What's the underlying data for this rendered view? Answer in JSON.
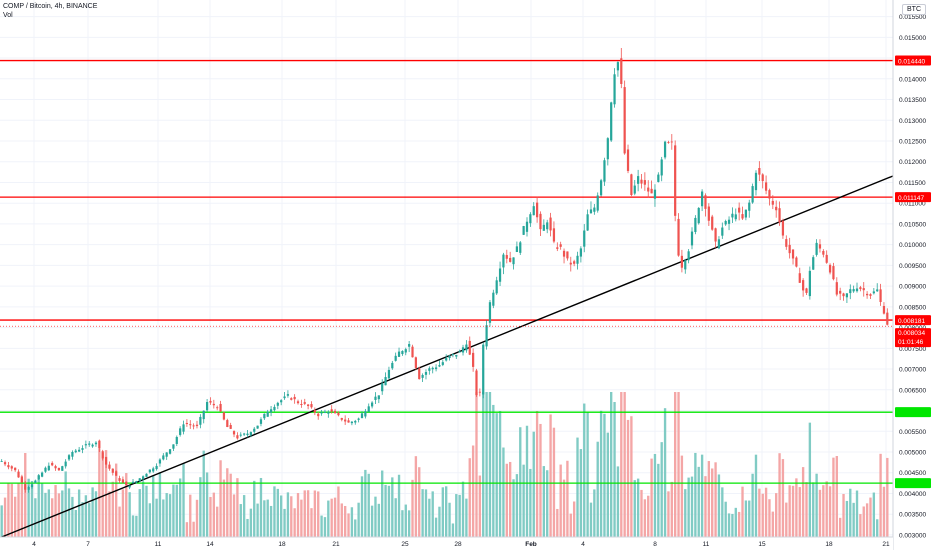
{
  "header": {
    "title": "COMP / Bitcoin, 4h, BINANCE",
    "volume_label": "Vol",
    "currency": "BTC"
  },
  "colors": {
    "up": "#26a69a",
    "down": "#ef5350",
    "up_volume": "#80cbc4",
    "down_volume": "#f4a6a6",
    "resistance": "#ff0000",
    "support": "#00e600",
    "trendline": "#000000",
    "grid": "#f0f3fa",
    "axis_text": "#131722"
  },
  "chart_data": {
    "type": "candlestick",
    "title": "",
    "xlabel": "",
    "ylabel": "",
    "ylim": [
      0.00295,
      0.0159
    ],
    "x_ticks": [
      "4",
      "7",
      "11",
      "14",
      "18",
      "21",
      "25",
      "28",
      "Feb",
      "4",
      "8",
      "11",
      "15",
      "18",
      "21"
    ],
    "y_ticks": [
      "0.003000",
      "0.003500",
      "0.004000",
      "0.004500",
      "0.005000",
      "0.005500",
      "0.006000",
      "0.006500",
      "0.007000",
      "0.007500",
      "0.008000",
      "0.008500",
      "0.009000",
      "0.009500",
      "0.010000",
      "0.010500",
      "0.011000",
      "0.011500",
      "0.012000",
      "0.012500",
      "0.013000",
      "0.013500",
      "0.014000",
      "0.014500",
      "0.015000",
      "0.015500"
    ],
    "price_path": [
      [
        0,
        0.00478
      ],
      [
        4,
        0.00455
      ],
      [
        7,
        0.00412
      ],
      [
        10,
        0.0043
      ],
      [
        14,
        0.0047
      ],
      [
        17,
        0.00455
      ],
      [
        21,
        0.005
      ],
      [
        25,
        0.00515
      ],
      [
        28,
        0.00525
      ],
      [
        31,
        0.0047
      ],
      [
        34,
        0.0044
      ],
      [
        37,
        0.00418
      ],
      [
        40,
        0.0043
      ],
      [
        43,
        0.0045
      ],
      [
        46,
        0.0047
      ],
      [
        49,
        0.005
      ],
      [
        51,
        0.0052
      ],
      [
        54,
        0.0057
      ],
      [
        58,
        0.0056
      ],
      [
        61,
        0.0062
      ],
      [
        64,
        0.0061
      ],
      [
        67,
        0.0056
      ],
      [
        70,
        0.00535
      ],
      [
        73,
        0.00545
      ],
      [
        76,
        0.00565
      ],
      [
        79,
        0.006
      ],
      [
        82,
        0.0062
      ],
      [
        85,
        0.00635
      ],
      [
        88,
        0.0062
      ],
      [
        91,
        0.0061
      ],
      [
        94,
        0.0059
      ],
      [
        97,
        0.006
      ],
      [
        100,
        0.00585
      ],
      [
        103,
        0.0057
      ],
      [
        106,
        0.0058
      ],
      [
        109,
        0.00615
      ],
      [
        112,
        0.0064
      ],
      [
        115,
        0.007
      ],
      [
        118,
        0.0074
      ],
      [
        121,
        0.0076
      ],
      [
        124,
        0.0068
      ],
      [
        127,
        0.007
      ],
      [
        130,
        0.0071
      ],
      [
        133,
        0.0073
      ],
      [
        136,
        0.0074
      ],
      [
        138,
        0.00765
      ],
      [
        140,
        0.007
      ],
      [
        141,
        0.0064
      ],
      [
        142,
        0.0064
      ],
      [
        143,
        0.0076
      ],
      [
        145,
        0.0086
      ],
      [
        147,
        0.0092
      ],
      [
        149,
        0.0098
      ],
      [
        151,
        0.0096
      ],
      [
        153,
        0.0099
      ],
      [
        156,
        0.0106
      ],
      [
        158,
        0.011
      ],
      [
        160,
        0.0103
      ],
      [
        162,
        0.0106
      ],
      [
        164,
        0.01
      ],
      [
        166,
        0.0099
      ],
      [
        168,
        0.0096
      ],
      [
        170,
        0.0095
      ],
      [
        172,
        0.0099
      ],
      [
        174,
        0.0107
      ],
      [
        176,
        0.0109
      ],
      [
        178,
        0.0116
      ],
      [
        180,
        0.0126
      ],
      [
        181,
        0.0135
      ],
      [
        182,
        0.0142
      ],
      [
        183,
        0.0144
      ],
      [
        184,
        0.0138
      ],
      [
        185,
        0.0122
      ],
      [
        187,
        0.0112
      ],
      [
        189,
        0.0116
      ],
      [
        191,
        0.0114
      ],
      [
        193,
        0.0112
      ],
      [
        195,
        0.0116
      ],
      [
        197,
        0.0124
      ],
      [
        199,
        0.0124
      ],
      [
        200,
        0.0107
      ],
      [
        201,
        0.0098
      ],
      [
        202,
        0.0095
      ],
      [
        204,
        0.0099
      ],
      [
        206,
        0.0106
      ],
      [
        208,
        0.0113
      ],
      [
        210,
        0.0106
      ],
      [
        212,
        0.01
      ],
      [
        214,
        0.0104
      ],
      [
        216,
        0.0106
      ],
      [
        218,
        0.0108
      ],
      [
        220,
        0.0106
      ],
      [
        222,
        0.011
      ],
      [
        224,
        0.0118
      ],
      [
        226,
        0.0115
      ],
      [
        228,
        0.0111
      ],
      [
        230,
        0.0109
      ],
      [
        232,
        0.0102
      ],
      [
        234,
        0.0098
      ],
      [
        236,
        0.0094
      ],
      [
        238,
        0.0089
      ],
      [
        239,
        0.0088
      ],
      [
        240,
        0.0094
      ],
      [
        242,
        0.01
      ],
      [
        244,
        0.0098
      ],
      [
        246,
        0.0094
      ],
      [
        248,
        0.0088
      ],
      [
        250,
        0.0087
      ],
      [
        252,
        0.0089
      ],
      [
        254,
        0.009
      ],
      [
        256,
        0.0089
      ],
      [
        258,
        0.0088
      ],
      [
        260,
        0.0089
      ],
      [
        261,
        0.0086
      ],
      [
        262,
        0.0084
      ],
      [
        263,
        0.0081
      ]
    ],
    "horizontal_levels": [
      {
        "price": 0.01444,
        "label": "0.014440",
        "kind": "resistance"
      },
      {
        "price": 0.011147,
        "label": "0.011147",
        "kind": "resistance"
      },
      {
        "price": 0.008181,
        "label": "0.008181",
        "kind": "resistance"
      },
      {
        "price": 0.00596,
        "label": "",
        "kind": "support"
      },
      {
        "price": 0.00425,
        "label": "",
        "kind": "support"
      }
    ],
    "last_price": {
      "price": 0.008034,
      "label": "0.008034",
      "countdown": "01:01:46"
    },
    "trendline": [
      [
        0.003,
        0.00295
      ],
      [
        263,
        0.0117
      ]
    ]
  }
}
